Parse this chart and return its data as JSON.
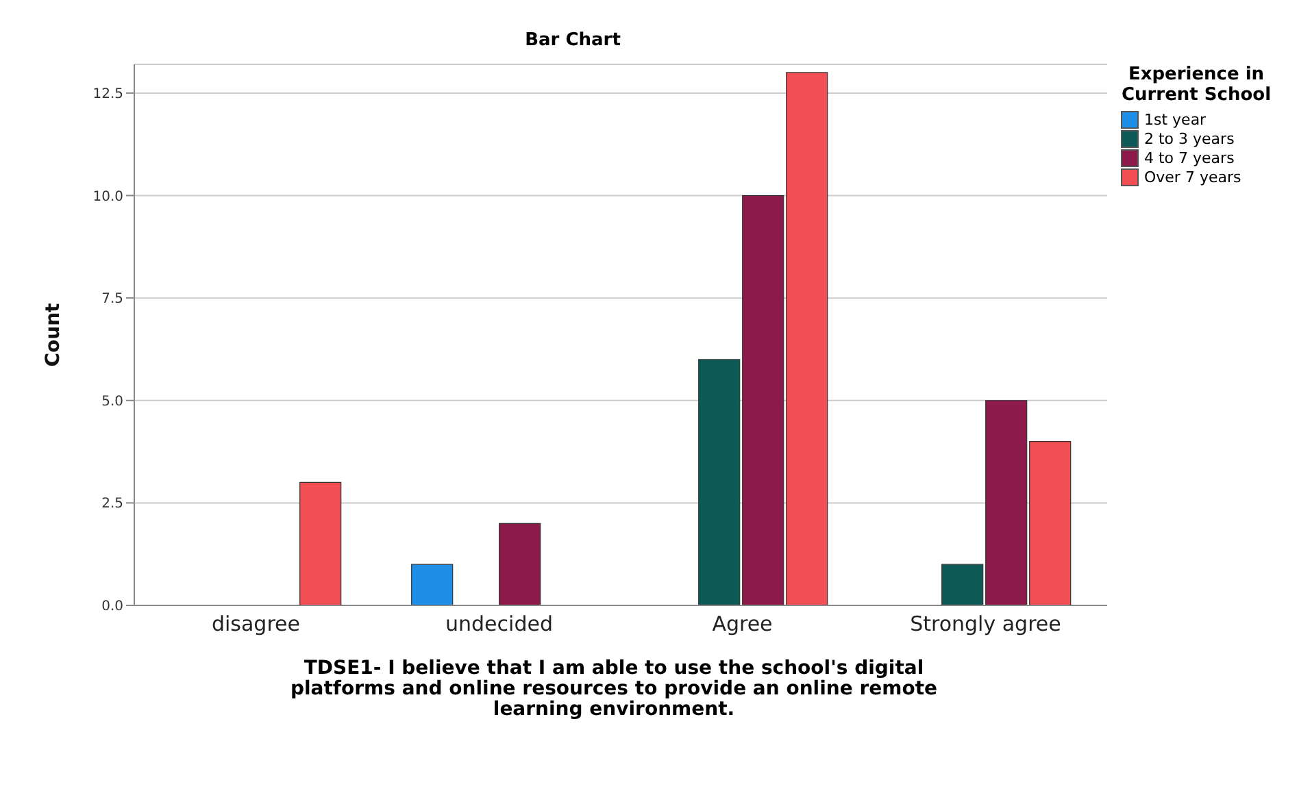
{
  "chart_data": {
    "type": "bar",
    "title": "Bar Chart",
    "xlabel": "TDSE1- I believe that I am able to use the school's digital platforms and online resources to provide an online remote learning environment.",
    "ylabel": "Count",
    "legend_title": "Experience in Current School",
    "categories": [
      "disagree",
      "undecided",
      "Agree",
      "Strongly agree"
    ],
    "series": [
      {
        "name": "1st year",
        "color": "#1f8ee6",
        "values": [
          null,
          1,
          null,
          null
        ]
      },
      {
        "name": "2 to 3 years",
        "color": "#0e5a56",
        "values": [
          null,
          null,
          6,
          1
        ]
      },
      {
        "name": "4 to 7 years",
        "color": "#8c1a4b",
        "values": [
          null,
          2,
          10,
          5
        ]
      },
      {
        "name": "Over 7 years",
        "color": "#f24f55",
        "values": [
          3,
          null,
          13,
          4
        ]
      }
    ],
    "ylim": [
      0,
      13.2
    ],
    "yticks": [
      {
        "value": 0,
        "label": "0.0"
      },
      {
        "value": 2.5,
        "label": "2.5"
      },
      {
        "value": 5,
        "label": "5.0"
      },
      {
        "value": 7.5,
        "label": "7.5"
      },
      {
        "value": 10,
        "label": "10.0"
      },
      {
        "value": 12.5,
        "label": "12.5"
      }
    ],
    "grid": "y",
    "legend": "top right"
  }
}
